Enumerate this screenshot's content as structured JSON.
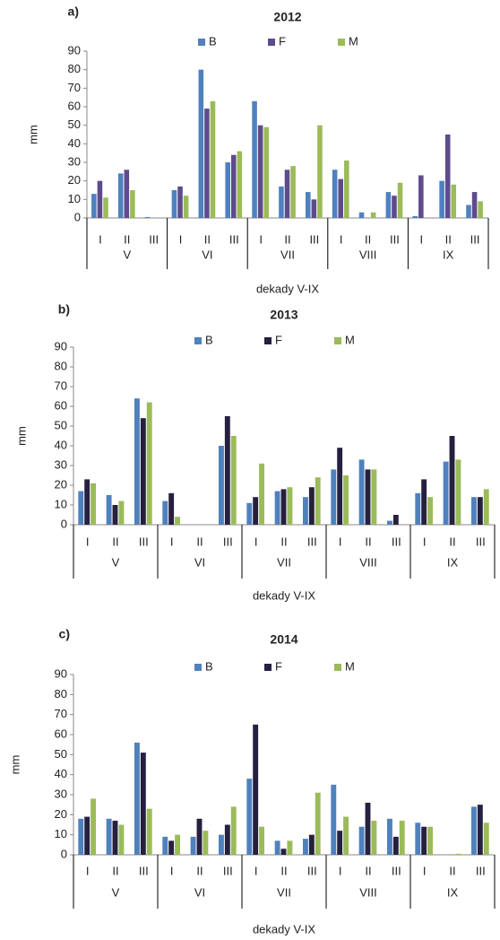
{
  "chart_data": [
    {
      "type": "bar",
      "label": "a)",
      "title": "2012",
      "xlabel": "dekady V-IX",
      "ylabel": "mm",
      "categories": [
        "I",
        "II",
        "III",
        "I",
        "II",
        "III",
        "I",
        "II",
        "III",
        "I",
        "II",
        "III",
        "I",
        "II",
        "III"
      ],
      "groups": [
        "V",
        "VI",
        "VII",
        "VIII",
        "IX"
      ],
      "ylim": [
        0,
        90
      ],
      "yticks": [
        0,
        10,
        20,
        30,
        40,
        50,
        60,
        70,
        80,
        90
      ],
      "series": [
        {
          "name": "B",
          "color": "#4f81bd",
          "values": [
            13,
            24,
            0.5,
            15,
            80,
            30,
            63,
            17,
            14,
            26,
            3,
            14,
            1,
            20,
            7
          ]
        },
        {
          "name": "F",
          "color": "#5f4b8b",
          "values": [
            20,
            26,
            0,
            17,
            59,
            34,
            50,
            26,
            10,
            21,
            0,
            12,
            23,
            45,
            14
          ]
        },
        {
          "name": "M",
          "color": "#9bbb59",
          "values": [
            11,
            15,
            0,
            12,
            63,
            36,
            49,
            28,
            50,
            31,
            3,
            19,
            0,
            18,
            9
          ]
        }
      ]
    },
    {
      "type": "bar",
      "label": "b)",
      "title": "2013",
      "xlabel": "dekady V-IX",
      "ylabel": "mm",
      "categories": [
        "I",
        "II",
        "III",
        "I",
        "II",
        "III",
        "I",
        "II",
        "III",
        "I",
        "II",
        "III",
        "I",
        "II",
        "III"
      ],
      "groups": [
        "V",
        "VI",
        "VII",
        "VIII",
        "IX"
      ],
      "ylim": [
        0,
        90
      ],
      "yticks": [
        0,
        10,
        20,
        30,
        40,
        50,
        60,
        70,
        80,
        90
      ],
      "series": [
        {
          "name": "B",
          "color": "#4f81bd",
          "values": [
            17,
            15,
            64,
            12,
            0,
            40,
            11,
            17,
            14,
            28,
            33,
            2,
            16,
            32,
            14
          ]
        },
        {
          "name": "F",
          "color": "#262040",
          "values": [
            23,
            10,
            54,
            16,
            0,
            55,
            14,
            18,
            19,
            39,
            28,
            5,
            23,
            45,
            14
          ]
        },
        {
          "name": "M",
          "color": "#9bbb59",
          "values": [
            21,
            12,
            62,
            4,
            0,
            45,
            31,
            19,
            24,
            25,
            28,
            0,
            14,
            33,
            18
          ]
        }
      ]
    },
    {
      "type": "bar",
      "label": "c)",
      "title": "2014",
      "xlabel": "dekady V-IX",
      "ylabel": "mm",
      "categories": [
        "I",
        "II",
        "III",
        "I",
        "II",
        "III",
        "I",
        "II",
        "III",
        "I",
        "II",
        "III",
        "I",
        "II",
        "III"
      ],
      "groups": [
        "V",
        "VI",
        "VII",
        "VIII",
        "IX"
      ],
      "ylim": [
        0,
        90
      ],
      "yticks": [
        0,
        10,
        20,
        30,
        40,
        50,
        60,
        70,
        80,
        90
      ],
      "series": [
        {
          "name": "B",
          "color": "#4f81bd",
          "values": [
            18,
            18,
            56,
            9,
            9,
            10,
            38,
            7,
            8,
            35,
            14,
            18,
            16,
            0,
            24
          ]
        },
        {
          "name": "F",
          "color": "#262040",
          "values": [
            19,
            17,
            51,
            7,
            18,
            15,
            65,
            3,
            10,
            12,
            26,
            9,
            14,
            0,
            25
          ]
        },
        {
          "name": "M",
          "color": "#9bbb59",
          "values": [
            28,
            15,
            23,
            10,
            12,
            24,
            14,
            7,
            31,
            19,
            17,
            17,
            14,
            0.5,
            16
          ]
        }
      ]
    }
  ]
}
